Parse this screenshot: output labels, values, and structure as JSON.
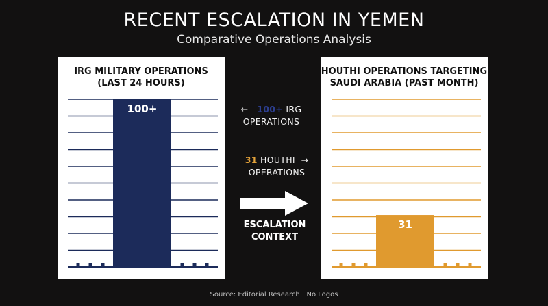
{
  "header": {
    "title": "RECENT ESCALATION IN YEMEN",
    "subtitle": "Comparative Operations Analysis"
  },
  "colors": {
    "background": "#121111",
    "irg": "#1c2b5a",
    "houthi": "#e09a2f",
    "irg_text": "#2c3e8f",
    "houthi_text": "#e3a23a"
  },
  "annotations": {
    "irg_number": "100+",
    "irg_text_line1": "IRG",
    "irg_text_line2": "OPERATIONS",
    "houthi_number": "31",
    "houthi_text_line1": "HOUTHI",
    "houthi_text_line2": "OPERATIONS",
    "context_line1": "ESCALATION",
    "context_line2": "CONTEXT"
  },
  "footer": {
    "source": "Source: Editorial Research | No Logos"
  },
  "chart_data": [
    {
      "type": "bar",
      "title_line1": "IRG MILITARY OPERATIONS",
      "title_line2": "(LAST 24 HOURS)",
      "categories": [
        ""
      ],
      "values": [
        100
      ],
      "value_label": "100+",
      "ylim": [
        0,
        100
      ],
      "grid": true
    },
    {
      "type": "bar",
      "title_line1": "HOUTHI OPERATIONS TARGETING",
      "title_line2": "SAUDI ARABIA (PAST MONTH)",
      "categories": [
        ""
      ],
      "values": [
        31
      ],
      "value_label": "31",
      "ylim": [
        0,
        100
      ],
      "grid": true
    }
  ]
}
